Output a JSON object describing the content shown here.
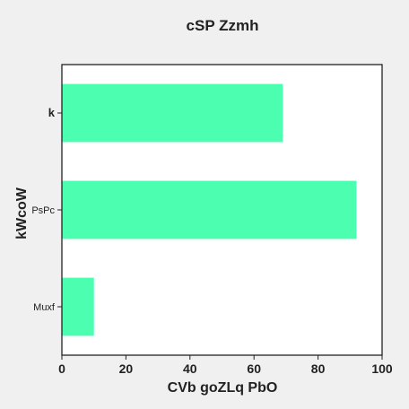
{
  "chart_data": {
    "type": "bar",
    "orientation": "horizontal",
    "title": "cSP Zzmh",
    "xlabel": "CVb  goZLq PbO",
    "ylabel": "kWcoW",
    "categories": [
      "k",
      "PsPc",
      "Muxf"
    ],
    "values": [
      69,
      92,
      10
    ],
    "xlim": [
      0,
      100
    ],
    "xticks": [
      0,
      20,
      40,
      60,
      80,
      100
    ],
    "grid": false,
    "legend": "none",
    "colors": {
      "bar": "#4cffb0",
      "plot_background": "#ffffff",
      "figure_background": "#f0f0f0",
      "axes": "#222222"
    }
  }
}
